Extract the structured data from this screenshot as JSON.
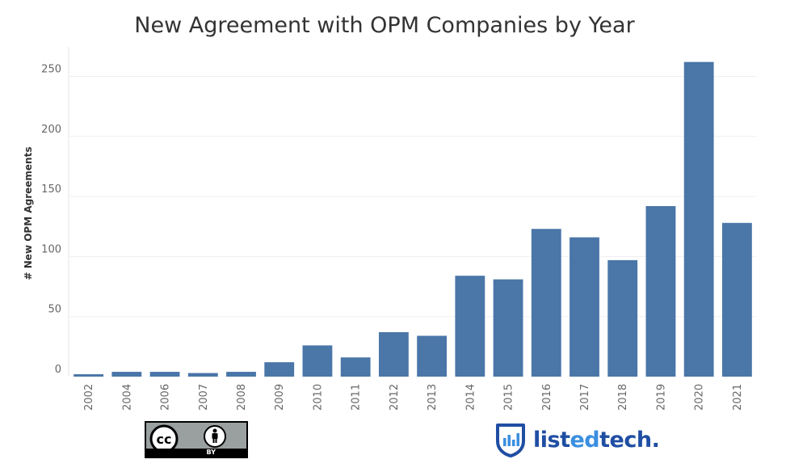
{
  "chart_data": {
    "type": "bar",
    "title": "New Agreement with OPM Companies by Year",
    "xlabel": "",
    "ylabel": "# New OPM Agreements",
    "categories": [
      "2002",
      "2004",
      "2006",
      "2007",
      "2008",
      "2009",
      "2010",
      "2011",
      "2012",
      "2013",
      "2014",
      "2015",
      "2016",
      "2017",
      "2018",
      "2019",
      "2020",
      "2021"
    ],
    "values": [
      2,
      4,
      4,
      3,
      4,
      12,
      26,
      16,
      37,
      34,
      84,
      81,
      123,
      116,
      97,
      142,
      262,
      128
    ],
    "yticks": [
      0,
      50,
      100,
      150,
      200,
      250
    ],
    "ylim": [
      0,
      270
    ],
    "grid": true,
    "bar_color": "#4a76a8"
  },
  "license": {
    "icon_names": [
      "cc-icon",
      "attribution-person-icon"
    ],
    "text": "BY"
  },
  "brand": {
    "icon": "bar-chart-shield-icon",
    "name_prefix": "list",
    "name_accent": "ed",
    "name_suffix": "tech",
    "name_dot": ".",
    "primary_color": "#1f4ea3",
    "accent_color": "#3a8fe0"
  }
}
